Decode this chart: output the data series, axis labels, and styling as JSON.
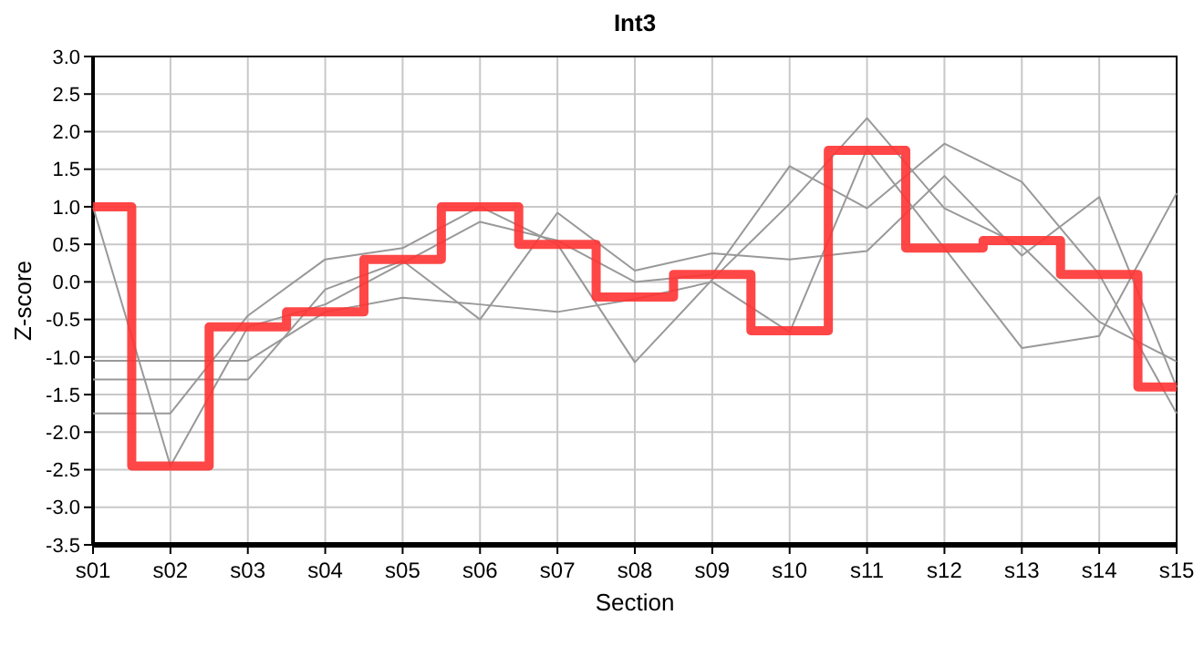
{
  "chart_data": {
    "type": "line",
    "title": "Int3",
    "xlabel": "Section",
    "ylabel": "Z-score",
    "categories": [
      "s01",
      "s02",
      "s03",
      "s04",
      "s05",
      "s06",
      "s07",
      "s08",
      "s09",
      "s10",
      "s11",
      "s12",
      "s13",
      "s14",
      "s15"
    ],
    "series": [
      {
        "color": "#999999",
        "values": [
          1.0,
          -2.45,
          -0.6,
          -0.3,
          0.25,
          0.8,
          0.55,
          0.0,
          0.1,
          1.54,
          0.98,
          1.84,
          1.33,
          0.1,
          -1.75
        ]
      },
      {
        "color": "#999999",
        "values": [
          -1.75,
          -1.75,
          -0.45,
          0.3,
          0.45,
          1.0,
          0.5,
          -1.07,
          0.03,
          1.04,
          2.18,
          0.98,
          0.48,
          -0.53,
          -1.06
        ]
      },
      {
        "color": "#999999",
        "values": [
          -1.3,
          -1.3,
          -1.3,
          -0.1,
          0.28,
          -0.5,
          0.92,
          0.15,
          0.38,
          0.3,
          0.41,
          1.41,
          0.35,
          1.13,
          -1.4
        ]
      },
      {
        "color": "#999999",
        "values": [
          -1.05,
          -1.05,
          -1.05,
          -0.4,
          -0.21,
          -0.3,
          -0.4,
          -0.23,
          0.0,
          -0.67,
          1.77,
          0.45,
          -0.88,
          -0.72,
          1.18
        ]
      },
      {
        "type": "step",
        "color": "#ff3333",
        "values": [
          1.0,
          -2.45,
          -0.6,
          -0.4,
          0.3,
          1.0,
          0.5,
          -0.2,
          0.1,
          -0.65,
          1.75,
          0.45,
          0.55,
          0.1,
          -1.4
        ]
      }
    ],
    "ylim": [
      -3.5,
      3.0
    ],
    "yticks": [
      {
        "value": -3.5,
        "label": "-3.5"
      },
      {
        "value": -3,
        "label": "-3.0"
      },
      {
        "value": -2.5,
        "label": "-2.5"
      },
      {
        "value": -2,
        "label": "-2.0"
      },
      {
        "value": -1.5,
        "label": "-1.5"
      },
      {
        "value": -1,
        "label": "-1.0"
      },
      {
        "value": -0.5,
        "label": "-0.5"
      },
      {
        "value": 0,
        "label": "0.0"
      },
      {
        "value": 0.5,
        "label": "0.5"
      },
      {
        "value": 1,
        "label": "1.0"
      },
      {
        "value": 1.5,
        "label": "1.5"
      },
      {
        "value": 2,
        "label": "2.0"
      },
      {
        "value": 2.5,
        "label": "2.5"
      },
      {
        "value": 3,
        "label": "3.0"
      }
    ],
    "grid": true,
    "marker": "none"
  }
}
